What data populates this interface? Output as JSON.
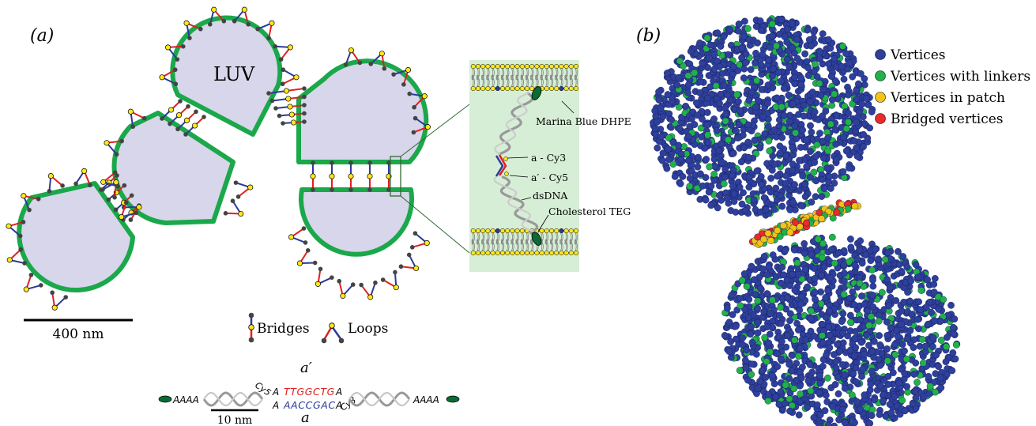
{
  "panel_a": {
    "label": "(a)",
    "luv_label": "LUV",
    "scale_bar_label": "400 nm",
    "inset": {
      "marina": "Marina Blue DHPE",
      "cy3": "a - Cy3",
      "cy5": "a′ - Cy5",
      "dsdna": "dsDNA",
      "chol": "Cholesterol TEG"
    },
    "legend": {
      "bridges": "Bridges",
      "loops": "Loops"
    },
    "sequence": {
      "a_prime": "a′",
      "a": "a",
      "left_tail": "AAAA",
      "right_tail": "AAAA",
      "top_left_A": "A",
      "top_right_A": "A",
      "bottom_left_A": "A",
      "bottom_right_A": "A",
      "top_seq": "TTGGCTG",
      "bottom_seq": "AACCGAC",
      "cy5": "Cy5",
      "cy3": "Cy3",
      "scale_label": "10 nm"
    }
  },
  "panel_b": {
    "label": "(b)",
    "legend": [
      {
        "label": "Vertices",
        "color": "#2e3f9c"
      },
      {
        "label": "Vertices with linkers",
        "color": "#22b04a"
      },
      {
        "label": "Vertices in patch",
        "color": "#f2c318"
      },
      {
        "label": "Bridged vertices",
        "color": "#e62b2b"
      }
    ]
  },
  "colors": {
    "membrane": "#1aa84a",
    "vesicle_fill": "#d7d6ea",
    "linker_blue": "#2b3a9a",
    "linker_red": "#e02020",
    "node_yellow": "#ffe817",
    "inset_bg": "#d6eed6",
    "dna_top": "#e02020",
    "dna_bottom": "#2b3a9a"
  }
}
